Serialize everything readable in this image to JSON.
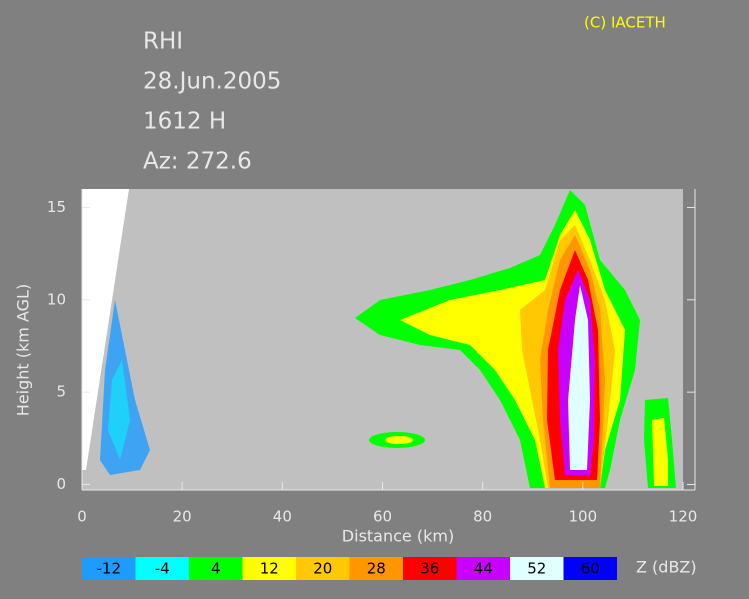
{
  "chart_data": {
    "type": "rhi",
    "header": [
      "RHI",
      "28.Jun.2005",
      "1612 H",
      "Az: 272.6"
    ],
    "credit": "(C) IACETH",
    "x_label": "Distance     (km)",
    "y_label": "Height  (km AGL)",
    "xlim": [
      0,
      120
    ],
    "xticks": [
      0,
      20,
      40,
      60,
      80,
      100,
      120
    ],
    "ylim": [
      -0.3,
      16
    ],
    "yticks": [
      0,
      5,
      10,
      15
    ],
    "colorbar": {
      "label": "Z (dBZ)",
      "levels": [
        -12,
        -4,
        4,
        12,
        20,
        28,
        36,
        44,
        52,
        60
      ],
      "colors": [
        "#1e9bff",
        "#00ffff",
        "#00ff00",
        "#ffff00",
        "#ffc800",
        "#ff9600",
        "#ff0000",
        "#c800ff",
        "#e0ffff",
        "#0000ff"
      ]
    }
  }
}
